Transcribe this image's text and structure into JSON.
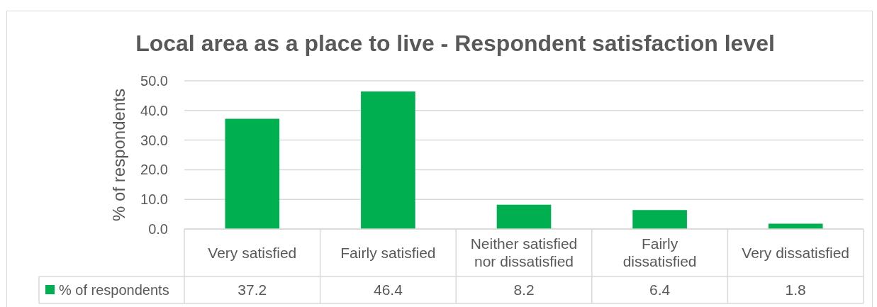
{
  "chart_data": {
    "type": "bar",
    "title": "Local area as a place to live - Respondent satisfaction level",
    "ylabel": "% of respondents",
    "categories": [
      "Very satisfied",
      "Fairly satisfied",
      "Neither satisfied nor dissatisfied",
      "Fairly dissatisfied",
      "Very dissatisfied"
    ],
    "series": [
      {
        "name": "% of respondents",
        "color": "#00b050",
        "values": [
          37.2,
          46.4,
          8.2,
          6.4,
          1.8
        ]
      }
    ],
    "ylim": [
      0,
      50
    ],
    "yticks": [
      {
        "value": 0,
        "label": "0.0"
      },
      {
        "value": 10,
        "label": "10.0"
      },
      {
        "value": 20,
        "label": "20.0"
      },
      {
        "value": 30,
        "label": "30.0"
      },
      {
        "value": 40,
        "label": "40.0"
      },
      {
        "value": 50,
        "label": "50.0"
      }
    ],
    "grid": "y",
    "legend": "bottom",
    "data_labels": true
  }
}
